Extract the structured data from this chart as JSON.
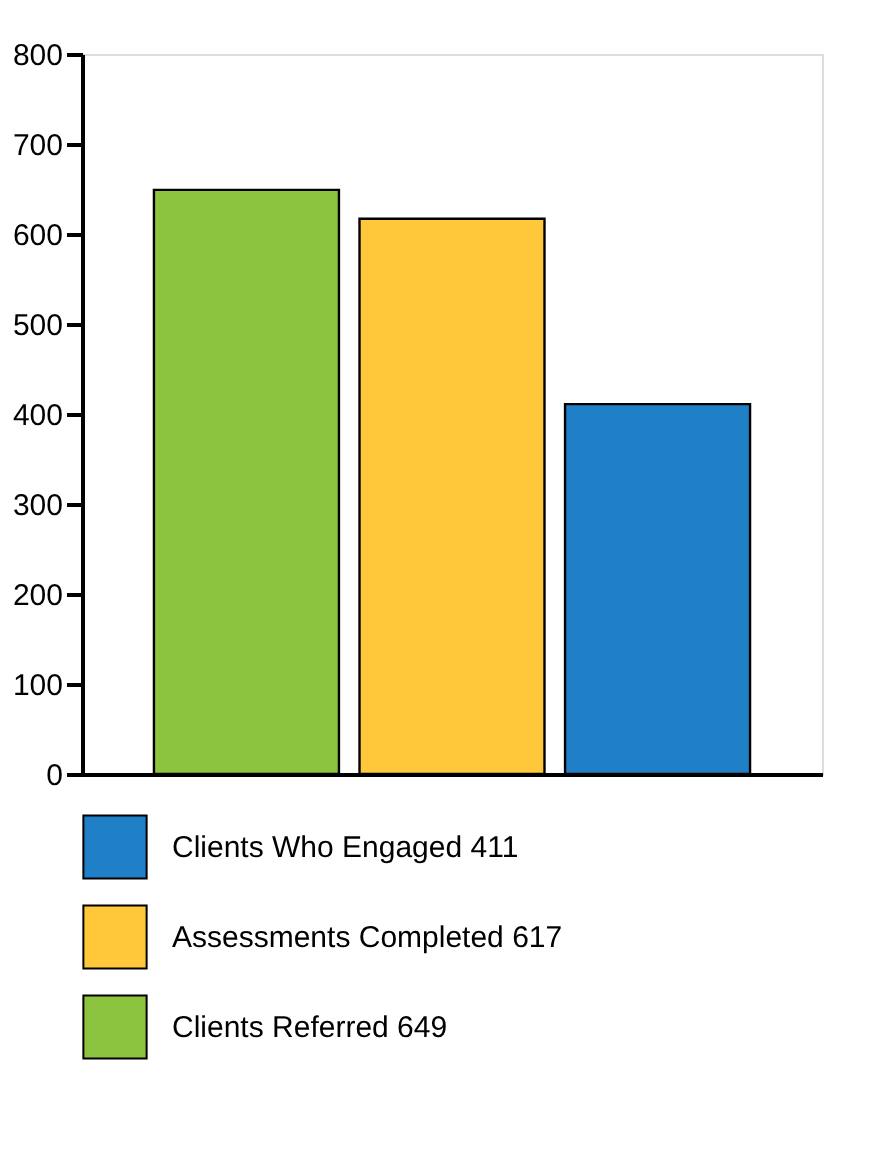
{
  "chart_data": {
    "type": "bar",
    "categories": [
      null,
      null,
      null
    ],
    "series": [
      {
        "name": "Clients Who Engaged 411",
        "color": "#1f7fc7",
        "values": [
          null,
          null,
          411
        ]
      },
      {
        "name": "Assessments Completed 617",
        "color": "#ffc83a",
        "values": [
          null,
          617,
          null
        ]
      },
      {
        "name": "Clients Referred 649",
        "color": "#8cc43f",
        "values": [
          649,
          null,
          null
        ]
      }
    ],
    "ylim": [
      0,
      800
    ],
    "yticks": [
      0,
      100,
      200,
      300,
      400,
      500,
      600,
      700,
      800
    ],
    "grid": false,
    "legend": "bottom",
    "tick_labels": "y"
  }
}
